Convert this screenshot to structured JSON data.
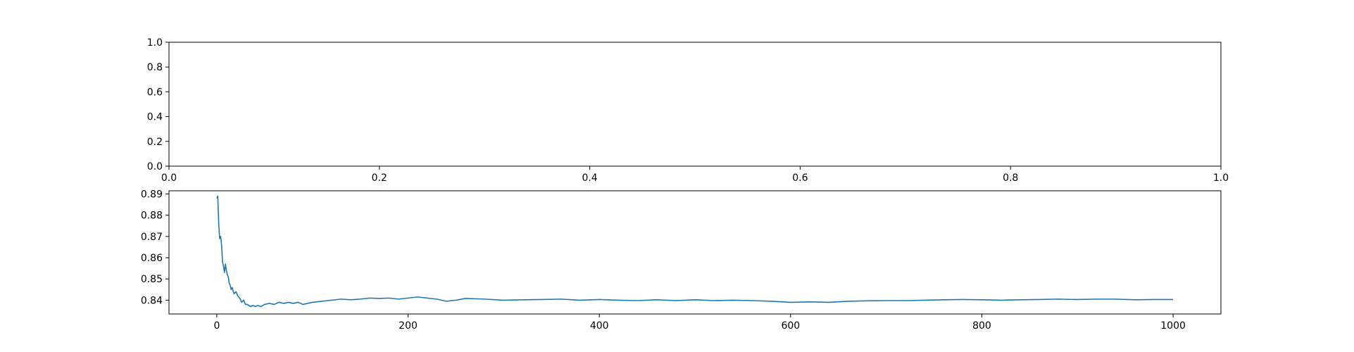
{
  "chart_data": [
    {
      "type": "line",
      "title": "",
      "xlabel": "",
      "ylabel": "",
      "xlim": [
        0.0,
        1.0
      ],
      "ylim": [
        0.0,
        1.0
      ],
      "grid": false,
      "xticks": [
        "0.0",
        "0.2",
        "0.4",
        "0.6",
        "0.8",
        "1.0"
      ],
      "yticks": [
        "0.0",
        "0.2",
        "0.4",
        "0.6",
        "0.8",
        "1.0"
      ],
      "series": []
    },
    {
      "type": "line",
      "title": "",
      "xlabel": "",
      "ylabel": "",
      "xlim": [
        -50,
        1050
      ],
      "ylim": [
        0.8335,
        0.8915
      ],
      "grid": false,
      "xticks": [
        "0",
        "200",
        "400",
        "600",
        "800",
        "1000"
      ],
      "yticks": [
        "0.84",
        "0.85",
        "0.86",
        "0.87",
        "0.88",
        "0.89"
      ],
      "series": [
        {
          "color": "#1f77b4",
          "x": [
            0,
            1,
            2,
            3,
            4,
            5,
            6,
            7,
            8,
            9,
            10,
            11,
            12,
            13,
            14,
            15,
            16,
            18,
            20,
            22,
            24,
            26,
            28,
            30,
            32,
            35,
            38,
            40,
            43,
            46,
            50,
            55,
            60,
            65,
            70,
            75,
            80,
            85,
            90,
            95,
            100,
            110,
            120,
            130,
            140,
            150,
            160,
            170,
            180,
            190,
            200,
            210,
            220,
            230,
            240,
            250,
            260,
            280,
            300,
            320,
            340,
            360,
            380,
            400,
            420,
            440,
            460,
            480,
            500,
            520,
            540,
            560,
            580,
            600,
            620,
            640,
            660,
            680,
            700,
            720,
            740,
            760,
            780,
            800,
            820,
            840,
            860,
            880,
            900,
            920,
            940,
            960,
            980,
            1000
          ],
          "y": [
            0.888,
            0.889,
            0.876,
            0.869,
            0.87,
            0.866,
            0.858,
            0.856,
            0.853,
            0.857,
            0.854,
            0.852,
            0.851,
            0.848,
            0.847,
            0.845,
            0.846,
            0.843,
            0.844,
            0.842,
            0.841,
            0.839,
            0.84,
            0.838,
            0.838,
            0.837,
            0.8375,
            0.837,
            0.8375,
            0.837,
            0.838,
            0.8385,
            0.838,
            0.839,
            0.8385,
            0.839,
            0.8385,
            0.839,
            0.838,
            0.8385,
            0.839,
            0.8395,
            0.84,
            0.8405,
            0.8402,
            0.8405,
            0.841,
            0.8408,
            0.841,
            0.8405,
            0.841,
            0.8415,
            0.841,
            0.8405,
            0.8395,
            0.84,
            0.8408,
            0.8405,
            0.84,
            0.8402,
            0.8403,
            0.8405,
            0.84,
            0.8403,
            0.84,
            0.8398,
            0.8402,
            0.8398,
            0.8402,
            0.8398,
            0.84,
            0.8398,
            0.8395,
            0.839,
            0.8392,
            0.839,
            0.8395,
            0.8397,
            0.8398,
            0.8398,
            0.84,
            0.8402,
            0.8403,
            0.8402,
            0.84,
            0.8402,
            0.8403,
            0.8405,
            0.8403,
            0.8405,
            0.8405,
            0.8402,
            0.8403,
            0.8403
          ]
        }
      ]
    }
  ]
}
